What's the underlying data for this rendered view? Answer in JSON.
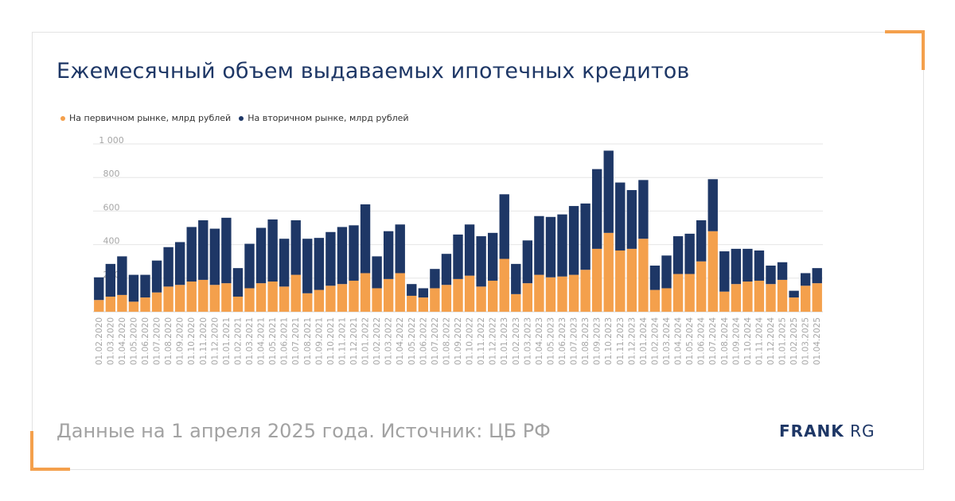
{
  "title": "Ежемесячный объем выдаваемых ипотечных кредитов",
  "footer": "Данные на 1 апреля 2025 года. Источник: ЦБ РФ",
  "logo": {
    "bold": "FRANK",
    "light": "RG"
  },
  "colors": {
    "primary": "#f4a04c",
    "secondary": "#1e3766",
    "accent_corner": "#f4a04c"
  },
  "chart_data": {
    "type": "bar",
    "stacked": true,
    "ylim": [
      0,
      1000
    ],
    "yticks": [
      "200",
      "400",
      "600",
      "800",
      "1 000"
    ],
    "ytick_values": [
      200,
      400,
      600,
      800,
      1000
    ],
    "grid": true,
    "legend_position": "top-left",
    "categories": [
      "01.02.2020",
      "01.03.2020",
      "01.04.2020",
      "01.05.2020",
      "01.06.2020",
      "01.07.2020",
      "01.08.2020",
      "01.09.2020",
      "01.10.2020",
      "01.11.2020",
      "01.12.2020",
      "01.01.2021",
      "01.02.2021",
      "01.03.2021",
      "01.04.2021",
      "01.05.2021",
      "01.06.2021",
      "01.07.2021",
      "01.08.2021",
      "01.09.2021",
      "01.10.2021",
      "01.11.2021",
      "01.12.2021",
      "01.01.2022",
      "01.02.2022",
      "01.03.2022",
      "01.04.2022",
      "01.05.2022",
      "01.06.2022",
      "01.07.2022",
      "01.08.2022",
      "01.09.2022",
      "01.10.2022",
      "01.11.2022",
      "01.12.2022",
      "01.01.2023",
      "01.02.2023",
      "01.03.2023",
      "01.04.2023",
      "01.05.2023",
      "01.06.2023",
      "01.07.2023",
      "01.08.2023",
      "01.09.2023",
      "01.10.2023",
      "01.11.2023",
      "01.12.2023",
      "01.01.2024",
      "01.02.2024",
      "01.03.2024",
      "01.04.2024",
      "01.05.2024",
      "01.06.2024",
      "01.07.2024",
      "01.08.2024",
      "01.09.2024",
      "01.10.2024",
      "01.11.2024",
      "01.12.2024",
      "01.01.2025",
      "01.02.2025",
      "01.03.2025",
      "01.04.2025"
    ],
    "series": [
      {
        "name": "На первичном рынке, млрд рублей",
        "color": "#f4a04c",
        "values": [
          70,
          90,
          100,
          60,
          85,
          115,
          150,
          160,
          180,
          190,
          160,
          170,
          90,
          140,
          170,
          180,
          150,
          220,
          110,
          130,
          155,
          165,
          185,
          230,
          140,
          195,
          230,
          95,
          85,
          140,
          160,
          195,
          215,
          150,
          185,
          315,
          105,
          170,
          220,
          205,
          210,
          220,
          250,
          375,
          470,
          365,
          375,
          435,
          130,
          140,
          225,
          225,
          300,
          480,
          120,
          165,
          180,
          185,
          165,
          190,
          85,
          155,
          170
        ]
      },
      {
        "name": "На вторичном рынке, млрд рублей",
        "color": "#1e3766",
        "values": [
          135,
          195,
          230,
          160,
          135,
          190,
          235,
          255,
          325,
          355,
          335,
          390,
          170,
          265,
          330,
          370,
          285,
          325,
          325,
          310,
          320,
          340,
          330,
          410,
          190,
          285,
          290,
          70,
          55,
          115,
          185,
          265,
          305,
          300,
          285,
          385,
          180,
          255,
          350,
          360,
          370,
          410,
          395,
          475,
          490,
          405,
          350,
          350,
          145,
          195,
          225,
          240,
          245,
          310,
          240,
          210,
          195,
          180,
          110,
          105,
          40,
          75,
          90
        ]
      }
    ]
  }
}
